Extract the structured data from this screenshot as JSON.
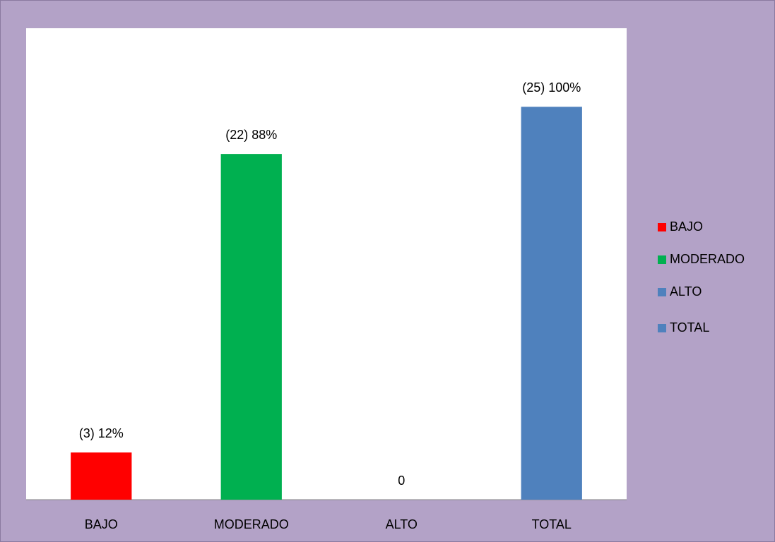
{
  "chart_data": {
    "type": "bar",
    "categories": [
      "BAJO",
      "MODERADO",
      "ALTO",
      "TOTAL"
    ],
    "values": [
      12,
      88,
      0,
      100
    ],
    "value_labels": [
      "(3) 12%",
      "(22) 88%",
      "0",
      "(25) 100%"
    ],
    "colors": [
      "#ff0000",
      "#00b050",
      "#4f81bd",
      "#4f81bd"
    ],
    "ylim": [
      0,
      120
    ],
    "legend": "right"
  }
}
